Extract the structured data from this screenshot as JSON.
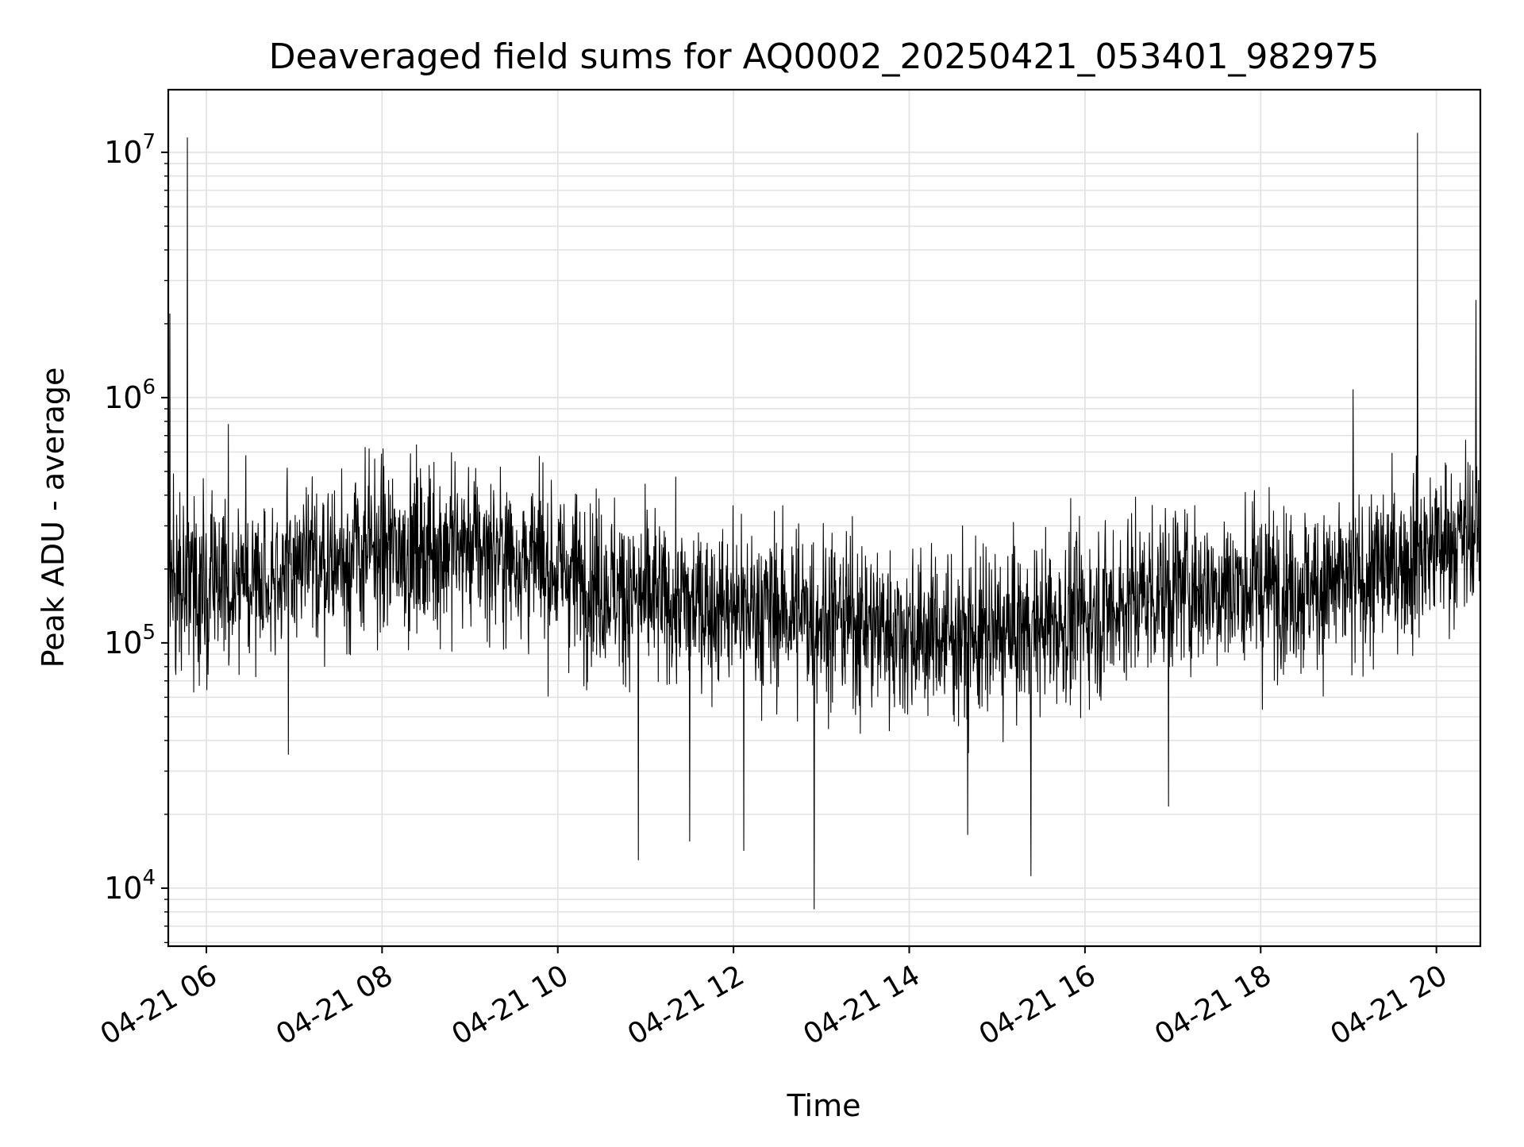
{
  "chart_data": {
    "type": "line",
    "title": "Deaveraged field sums for AQ0002_20250421_053401_982975",
    "xlabel": "Time",
    "ylabel": "Peak ADU - average",
    "yscale": "log",
    "ylim": [
      5800,
      18000000
    ],
    "xlim": [
      "2025-04-21 05:34",
      "2025-04-21 20:30"
    ],
    "grid": true,
    "xticks": [
      {
        "t": "2025-04-21 06:00",
        "label": "04-21 06"
      },
      {
        "t": "2025-04-21 08:00",
        "label": "04-21 08"
      },
      {
        "t": "2025-04-21 10:00",
        "label": "04-21 10"
      },
      {
        "t": "2025-04-21 12:00",
        "label": "04-21 12"
      },
      {
        "t": "2025-04-21 14:00",
        "label": "04-21 14"
      },
      {
        "t": "2025-04-21 16:00",
        "label": "04-21 16"
      },
      {
        "t": "2025-04-21 18:00",
        "label": "04-21 18"
      },
      {
        "t": "2025-04-21 20:00",
        "label": "04-21 20"
      }
    ],
    "yticks": [
      {
        "value": 10000,
        "base": "10",
        "exp": "4"
      },
      {
        "value": 100000,
        "base": "10",
        "exp": "5"
      },
      {
        "value": 1000000,
        "base": "10",
        "exp": "6"
      },
      {
        "value": 10000000,
        "base": "10",
        "exp": "7"
      }
    ],
    "series": [
      {
        "color": "#000000",
        "baseline": [
          [
            "2025-04-21 05:34",
            170000
          ],
          [
            "2025-04-21 06:00",
            170000
          ],
          [
            "2025-04-21 07:00",
            200000
          ],
          [
            "2025-04-21 08:00",
            240000
          ],
          [
            "2025-04-21 09:00",
            250000
          ],
          [
            "2025-04-21 10:00",
            200000
          ],
          [
            "2025-04-21 11:00",
            150000
          ],
          [
            "2025-04-21 12:00",
            140000
          ],
          [
            "2025-04-21 13:00",
            130000
          ],
          [
            "2025-04-21 14:00",
            110000
          ],
          [
            "2025-04-21 15:00",
            105000
          ],
          [
            "2025-04-21 16:00",
            130000
          ],
          [
            "2025-04-21 17:00",
            170000
          ],
          [
            "2025-04-21 18:00",
            170000
          ],
          [
            "2025-04-21 19:00",
            170000
          ],
          [
            "2025-04-21 20:00",
            250000
          ],
          [
            "2025-04-21 20:30",
            280000
          ]
        ],
        "peaks": [
          [
            "2025-04-21 05:35",
            2200000
          ],
          [
            "2025-04-21 05:47",
            11500000
          ],
          [
            "2025-04-21 06:15",
            780000
          ],
          [
            "2025-04-21 19:03",
            1080000
          ],
          [
            "2025-04-21 19:47",
            12000000
          ],
          [
            "2025-04-21 20:27",
            2500000
          ]
        ],
        "troughs": [
          [
            "2025-04-21 06:56",
            35000
          ],
          [
            "2025-04-21 10:55",
            13000
          ],
          [
            "2025-04-21 11:30",
            15500
          ],
          [
            "2025-04-21 12:07",
            14200
          ],
          [
            "2025-04-21 12:55",
            8200
          ],
          [
            "2025-04-21 14:40",
            16500
          ],
          [
            "2025-04-21 15:23",
            11200
          ],
          [
            "2025-04-21 16:57",
            21500
          ]
        ]
      }
    ]
  }
}
